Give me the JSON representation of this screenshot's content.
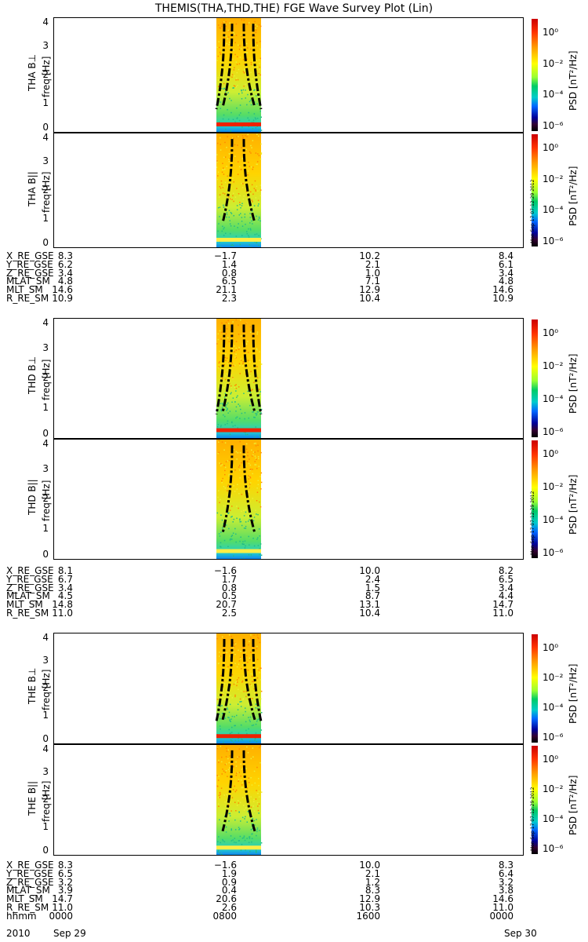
{
  "title": "THEMIS(THA,THD,THE) FGE Wave Survey Plot (Lin)",
  "freq_label": "freq [Hz]",
  "cbar_label": "PSD [nT²/Hz]",
  "cbar_ticks": [
    "10⁰",
    "10⁻²",
    "10⁻⁴",
    "10⁻⁶"
  ],
  "stamp": "Mon Sep 17 07:12:29 2012",
  "panels": [
    {
      "probe_label": "THA B⊥",
      "yticks": [
        "4",
        "3",
        "2",
        "1",
        "0"
      ]
    },
    {
      "probe_label": "THA B||",
      "yticks": [
        "4",
        "3",
        "2",
        "1",
        "0"
      ]
    },
    {
      "probe_label": "THD B⊥",
      "yticks": [
        "4",
        "3",
        "2",
        "1",
        "0"
      ]
    },
    {
      "probe_label": "THD B||",
      "yticks": [
        "4",
        "3",
        "2",
        "1",
        "0"
      ]
    },
    {
      "probe_label": "THE B⊥",
      "yticks": [
        "4",
        "3",
        "2",
        "1",
        "0"
      ]
    },
    {
      "probe_label": "THE B||",
      "yticks": [
        "4",
        "3",
        "2",
        "1",
        "0"
      ]
    }
  ],
  "ephem": [
    {
      "rows": [
        {
          "name": "X_RE_GSE",
          "v": [
            "8.3",
            "−1.7",
            "10.2",
            "8.4"
          ]
        },
        {
          "name": "Y_RE_GSE",
          "v": [
            "6.2",
            "1.4",
            "2.1",
            "6.1"
          ]
        },
        {
          "name": "Z_RE_GSE",
          "v": [
            "3.4",
            "0.8",
            "1.0",
            "3.4"
          ]
        },
        {
          "name": "MLAT_SM",
          "v": [
            "4.8",
            "6.5",
            "7.1",
            "4.8"
          ]
        },
        {
          "name": "MLT_SM",
          "v": [
            "14.6",
            "21.1",
            "12.9",
            "14.6"
          ]
        },
        {
          "name": "R_RE_SM",
          "v": [
            "10.9",
            "2.3",
            "10.4",
            "10.9"
          ]
        }
      ]
    },
    {
      "rows": [
        {
          "name": "X_RE_GSE",
          "v": [
            "8.1",
            "−1.6",
            "10.0",
            "8.2"
          ]
        },
        {
          "name": "Y_RE_GSE",
          "v": [
            "6.7",
            "1.7",
            "2.4",
            "6.5"
          ]
        },
        {
          "name": "Z_RE_GSE",
          "v": [
            "3.4",
            "0.8",
            "1.5",
            "3.4"
          ]
        },
        {
          "name": "MLAT_SM",
          "v": [
            "4.5",
            "0.5",
            "8.7",
            "4.4"
          ]
        },
        {
          "name": "MLT_SM",
          "v": [
            "14.8",
            "20.7",
            "13.1",
            "14.7"
          ]
        },
        {
          "name": "R_RE_SM",
          "v": [
            "11.0",
            "2.5",
            "10.4",
            "11.0"
          ]
        }
      ]
    },
    {
      "rows": [
        {
          "name": "X_RE_GSE",
          "v": [
            "8.3",
            "−1.6",
            "10.0",
            "8.3"
          ]
        },
        {
          "name": "Y_RE_GSE",
          "v": [
            "6.5",
            "1.9",
            "2.1",
            "6.4"
          ]
        },
        {
          "name": "Z_RE_GSE",
          "v": [
            "3.2",
            "0.9",
            "1.2",
            "3.2"
          ]
        },
        {
          "name": "MLAT_SM",
          "v": [
            "3.9",
            "0.4",
            "8.3",
            "3.8"
          ]
        },
        {
          "name": "MLT_SM",
          "v": [
            "14.7",
            "20.6",
            "12.9",
            "14.6"
          ]
        },
        {
          "name": "R_RE_SM",
          "v": [
            "11.0",
            "2.6",
            "10.3",
            "11.0"
          ]
        },
        {
          "name": "hhmm",
          "v": [
            "0000",
            "0800",
            "1600",
            "0000"
          ]
        }
      ]
    }
  ],
  "date_row": {
    "year": "2010",
    "start": "Sep 29",
    "end": "Sep 30"
  },
  "chart_data": {
    "type": "heatmap",
    "title": "THEMIS(THA,THD,THE) FGE Wave Survey Plot (Lin)",
    "ylabel": "freq [Hz]",
    "ylim": [
      0,
      4
    ],
    "colorbar_label": "PSD [nT^2/Hz]",
    "colorbar_scale": "log",
    "colorbar_ticks": [
      1,
      0.01,
      0.0001,
      1e-06
    ],
    "x_ticks": [
      "0000",
      "0800",
      "1600",
      "0000"
    ],
    "time_range_hhmm": [
      "0000",
      "2400"
    ],
    "data_interval_hhmm": [
      "0720",
      "0840"
    ],
    "series": [
      {
        "name": "THA B⊥",
        "bright_band_freq_hz": 0.25
      },
      {
        "name": "THA B||",
        "bright_band_freq_hz": 0.25
      },
      {
        "name": "THD B⊥",
        "bright_band_freq_hz": 0.25
      },
      {
        "name": "THD B||",
        "bright_band_freq_hz": 0.25
      },
      {
        "name": "THE B⊥",
        "bright_band_freq_hz": 0.25
      },
      {
        "name": "THE B||",
        "bright_band_freq_hz": 0.25
      }
    ]
  }
}
